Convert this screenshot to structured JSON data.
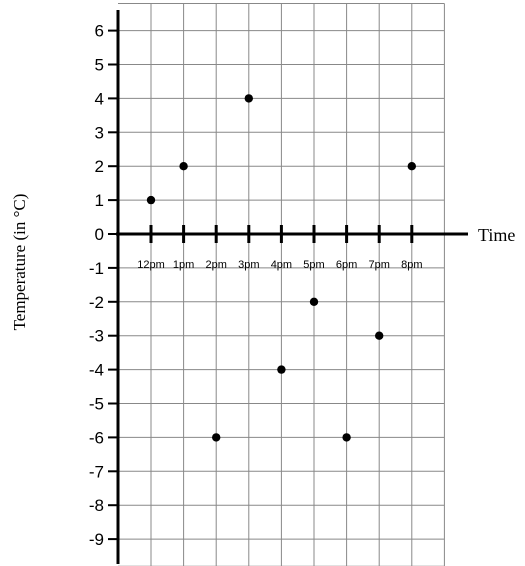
{
  "chart_data": {
    "type": "scatter",
    "title": "",
    "xlabel": "Time",
    "ylabel": "Temperature (in °C)",
    "categories": [
      "12pm",
      "1pm",
      "2pm",
      "3pm",
      "4pm",
      "5pm",
      "6pm",
      "7pm",
      "8pm"
    ],
    "values": [
      1,
      2,
      -6,
      4,
      -4,
      -2,
      -6,
      -3,
      2
    ],
    "y_ticks": [
      "6",
      "5",
      "4",
      "3",
      "2",
      "1",
      "0",
      "-1",
      "-2",
      "-3",
      "-4",
      "-5",
      "-6",
      "-7",
      "-8",
      "-9"
    ],
    "ylim": [
      -9.8,
      6.8
    ],
    "grid": true,
    "legend": "none",
    "colors": {
      "points": "#000000",
      "grid": "#888888",
      "axes": "#000000"
    }
  }
}
